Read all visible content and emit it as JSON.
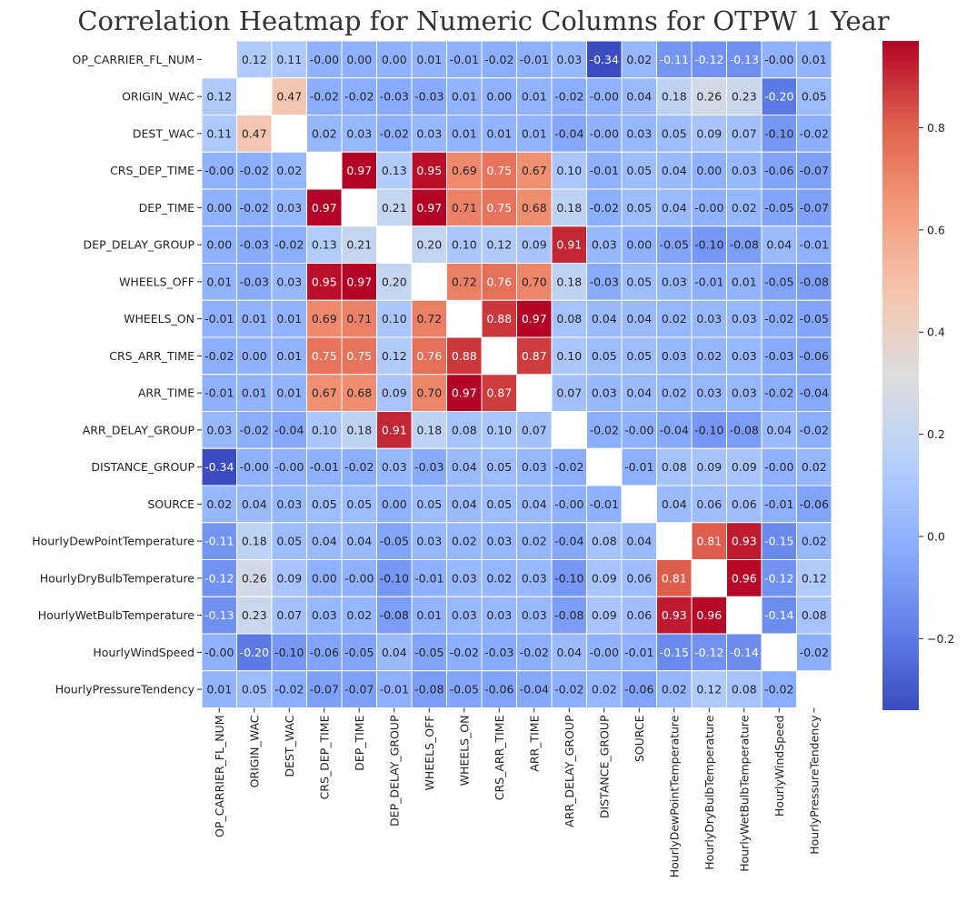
{
  "chart_data": {
    "type": "heatmap",
    "title": "Correlation Heatmap for Numeric Columns for OTPW 1 Year",
    "labels": [
      "OP_CARRIER_FL_NUM",
      "ORIGIN_WAC",
      "DEST_WAC",
      "CRS_DEP_TIME",
      "DEP_TIME",
      "DEP_DELAY_GROUP",
      "WHEELS_OFF",
      "WHEELS_ON",
      "CRS_ARR_TIME",
      "ARR_TIME",
      "ARR_DELAY_GROUP",
      "DISTANCE_GROUP",
      "SOURCE",
      "HourlyDewPointTemperature",
      "HourlyDryBulbTemperature",
      "HourlyWetBulbTemperature",
      "HourlyWindSpeed",
      "HourlyPressureTendency"
    ],
    "matrix": [
      [
        null,
        "0.12",
        "0.11",
        "-0.00",
        "0.00",
        "0.00",
        "0.01",
        "-0.01",
        "-0.02",
        "-0.01",
        "0.03",
        "-0.34",
        "0.02",
        "-0.11",
        "-0.12",
        "-0.13",
        "-0.00",
        "0.01"
      ],
      [
        "0.12",
        null,
        "0.47",
        "-0.02",
        "-0.02",
        "-0.03",
        "-0.03",
        "0.01",
        "0.00",
        "0.01",
        "-0.02",
        "-0.00",
        "0.04",
        "0.18",
        "0.26",
        "0.23",
        "-0.20",
        "0.05"
      ],
      [
        "0.11",
        "0.47",
        null,
        "0.02",
        "0.03",
        "-0.02",
        "0.03",
        "0.01",
        "0.01",
        "0.01",
        "-0.04",
        "-0.00",
        "0.03",
        "0.05",
        "0.09",
        "0.07",
        "-0.10",
        "-0.02"
      ],
      [
        "-0.00",
        "-0.02",
        "0.02",
        null,
        "0.97",
        "0.13",
        "0.95",
        "0.69",
        "0.75",
        "0.67",
        "0.10",
        "-0.01",
        "0.05",
        "0.04",
        "0.00",
        "0.03",
        "-0.06",
        "-0.07"
      ],
      [
        "0.00",
        "-0.02",
        "0.03",
        "0.97",
        null,
        "0.21",
        "0.97",
        "0.71",
        "0.75",
        "0.68",
        "0.18",
        "-0.02",
        "0.05",
        "0.04",
        "-0.00",
        "0.02",
        "-0.05",
        "-0.07"
      ],
      [
        "0.00",
        "-0.03",
        "-0.02",
        "0.13",
        "0.21",
        null,
        "0.20",
        "0.10",
        "0.12",
        "0.09",
        "0.91",
        "0.03",
        "0.00",
        "-0.05",
        "-0.10",
        "-0.08",
        "0.04",
        "-0.01"
      ],
      [
        "0.01",
        "-0.03",
        "0.03",
        "0.95",
        "0.97",
        "0.20",
        null,
        "0.72",
        "0.76",
        "0.70",
        "0.18",
        "-0.03",
        "0.05",
        "0.03",
        "-0.01",
        "0.01",
        "-0.05",
        "-0.08"
      ],
      [
        "-0.01",
        "0.01",
        "0.01",
        "0.69",
        "0.71",
        "0.10",
        "0.72",
        null,
        "0.88",
        "0.97",
        "0.08",
        "0.04",
        "0.04",
        "0.02",
        "0.03",
        "0.03",
        "-0.02",
        "-0.05"
      ],
      [
        "-0.02",
        "0.00",
        "0.01",
        "0.75",
        "0.75",
        "0.12",
        "0.76",
        "0.88",
        null,
        "0.87",
        "0.10",
        "0.05",
        "0.05",
        "0.03",
        "0.02",
        "0.03",
        "-0.03",
        "-0.06"
      ],
      [
        "-0.01",
        "0.01",
        "0.01",
        "0.67",
        "0.68",
        "0.09",
        "0.70",
        "0.97",
        "0.87",
        null,
        "0.07",
        "0.03",
        "0.04",
        "0.02",
        "0.03",
        "0.03",
        "-0.02",
        "-0.04"
      ],
      [
        "0.03",
        "-0.02",
        "-0.04",
        "0.10",
        "0.18",
        "0.91",
        "0.18",
        "0.08",
        "0.10",
        "0.07",
        null,
        "-0.02",
        "-0.00",
        "-0.04",
        "-0.10",
        "-0.08",
        "0.04",
        "-0.02"
      ],
      [
        "-0.34",
        "-0.00",
        "-0.00",
        "-0.01",
        "-0.02",
        "0.03",
        "-0.03",
        "0.04",
        "0.05",
        "0.03",
        "-0.02",
        null,
        "-0.01",
        "0.08",
        "0.09",
        "0.09",
        "-0.00",
        "0.02"
      ],
      [
        "0.02",
        "0.04",
        "0.03",
        "0.05",
        "0.05",
        "0.00",
        "0.05",
        "0.04",
        "0.05",
        "0.04",
        "-0.00",
        "-0.01",
        null,
        "0.04",
        "0.06",
        "0.06",
        "-0.01",
        "-0.06"
      ],
      [
        "-0.11",
        "0.18",
        "0.05",
        "0.04",
        "0.04",
        "-0.05",
        "0.03",
        "0.02",
        "0.03",
        "0.02",
        "-0.04",
        "0.08",
        "0.04",
        null,
        "0.81",
        "0.93",
        "-0.15",
        "0.02"
      ],
      [
        "-0.12",
        "0.26",
        "0.09",
        "0.00",
        "-0.00",
        "-0.10",
        "-0.01",
        "0.03",
        "0.02",
        "0.03",
        "-0.10",
        "0.09",
        "0.06",
        "0.81",
        null,
        "0.96",
        "-0.12",
        "0.12"
      ],
      [
        "-0.13",
        "0.23",
        "0.07",
        "0.03",
        "0.02",
        "-0.08",
        "0.01",
        "0.03",
        "0.03",
        "0.03",
        "-0.08",
        "0.09",
        "0.06",
        "0.93",
        "0.96",
        null,
        "-0.14",
        "0.08"
      ],
      [
        "-0.00",
        "-0.20",
        "-0.10",
        "-0.06",
        "-0.05",
        "0.04",
        "-0.05",
        "-0.02",
        "-0.03",
        "-0.02",
        "0.04",
        "-0.00",
        "-0.01",
        "-0.15",
        "-0.12",
        "-0.14",
        null,
        "-0.02"
      ],
      [
        "0.01",
        "0.05",
        "-0.02",
        "-0.07",
        "-0.07",
        "-0.01",
        "-0.08",
        "-0.05",
        "-0.06",
        "-0.04",
        "-0.02",
        "0.02",
        "-0.06",
        "0.02",
        "0.12",
        "0.08",
        "-0.02",
        null
      ]
    ],
    "colormap": "coolwarm",
    "colorbar": {
      "range": [
        -0.34,
        0.97
      ],
      "ticks": [
        "-0.2",
        "0.0",
        "0.2",
        "0.4",
        "0.6",
        "0.8"
      ]
    },
    "diagonal_masked": true
  }
}
